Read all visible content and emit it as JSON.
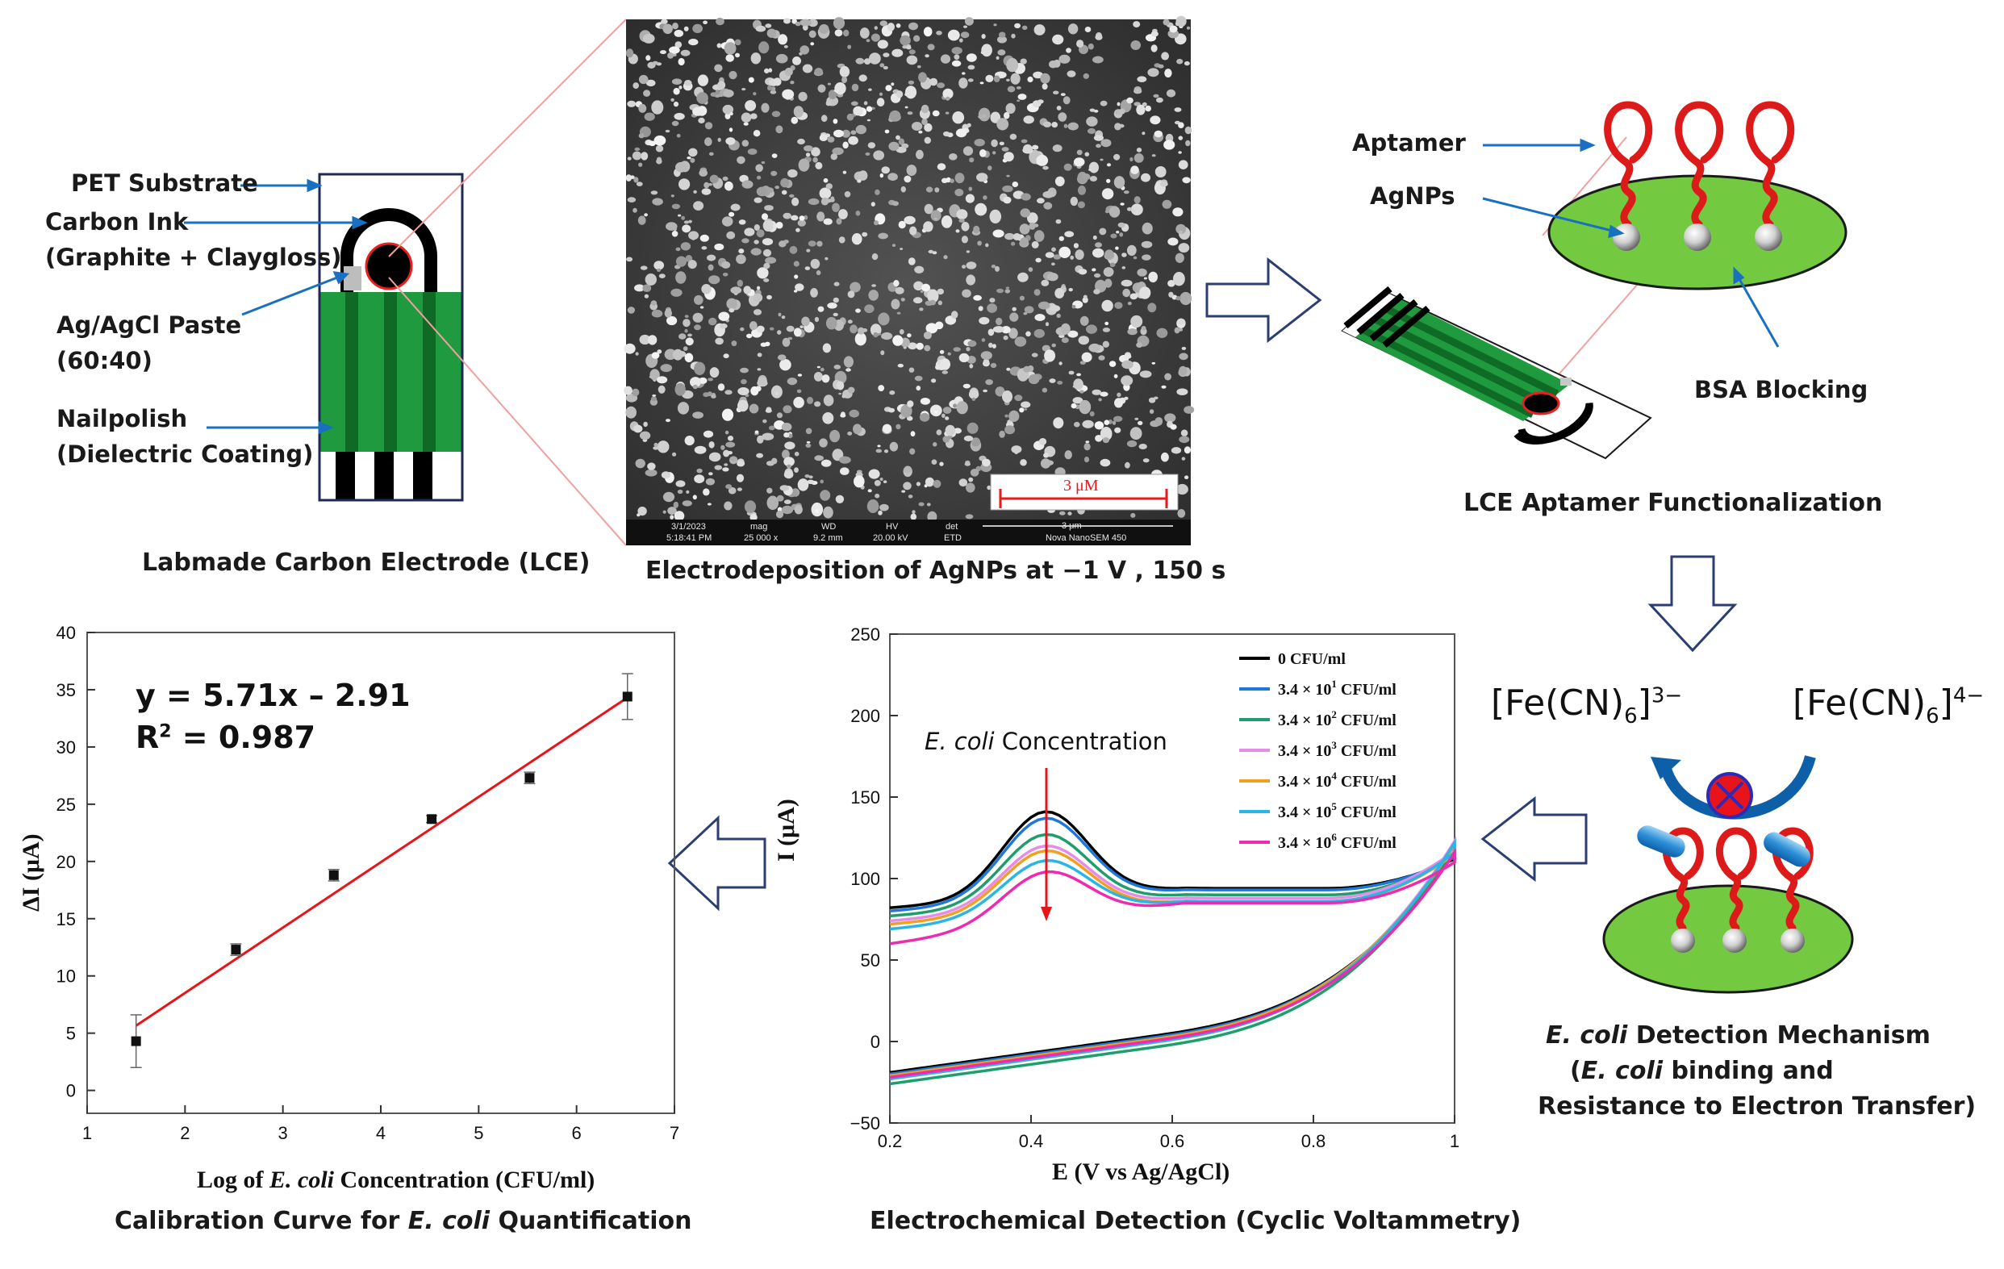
{
  "panel_lce": {
    "labels": {
      "pet": "PET Substrate",
      "carbon_1": "Carbon Ink",
      "carbon_2": "(Graphite + Claygloss)",
      "agagcl_1": "Ag/AgCl Paste",
      "agagcl_2": "(60:40)",
      "nail_1": "Nailpolish",
      "nail_2": "(Dielectric Coating)"
    },
    "caption": "Labmade Carbon Electrode (LCE)"
  },
  "panel_sem": {
    "scale_bar": "3 μM",
    "info_bar": {
      "date": "3/1/2023",
      "time": "5:18:41 PM",
      "mag_label": "mag",
      "mag_value": "25 000 x",
      "wd_label": "WD",
      "wd_value": "9.2 mm",
      "hv_label": "HV",
      "hv_value": "20.00 kV",
      "det_label": "det",
      "det_value": "ETD",
      "small_scale": "3 μm",
      "instrument": "Nova NanoSEM 450"
    },
    "caption": "Electrodeposition of AgNPs at −1 V , 150 s"
  },
  "panel_func": {
    "aptamer": "Aptamer",
    "agnps": "AgNPs",
    "bsa": "BSA Blocking",
    "caption": "LCE Aptamer Functionalization"
  },
  "panel_mech": {
    "ferri_base": "[Fe(CN)",
    "ferri_sub": "6",
    "ferri_close": "]",
    "ferri_sup": "3−",
    "ferro_base": "[Fe(CN)",
    "ferro_sub": "6",
    "ferro_close": "]",
    "ferro_sup": "4−",
    "caption_1_italic": "E. coli",
    "caption_1_rest": " Detection Mechanism",
    "caption_2_open": "(",
    "caption_2_italic": "E. coli",
    "caption_2_rest": " binding and",
    "caption_3": "Resistance to Electron Transfer)"
  },
  "cv_chart": {
    "y_axis_label": "I (μA)",
    "x_axis_label": "E (V vs Ag/AgCl)",
    "annotation_italic": "E. coli",
    "annotation_rest": " Concentration",
    "caption": "Electrochemical Detection (Cyclic Voltammetry)"
  },
  "cal_chart": {
    "equation": "y = 5.71x – 2.91",
    "r2_base": "R",
    "r2_sup": "2",
    "r2_value": " = 0.987",
    "y_axis_label": "ΔI (μA)",
    "x_label_pre": "Log of ",
    "x_label_italic": "E. coli",
    "x_label_post": " Concentration  (CFU/ml)",
    "caption_pre": "Calibration Curve for ",
    "caption_italic": "E. coli",
    "caption_post": " Quantification"
  },
  "chart_data": [
    {
      "type": "line",
      "xlim": [
        0.2,
        1.0
      ],
      "ylim": [
        -50,
        250
      ],
      "x_ticks": [
        "0.2",
        "0.4",
        "0.6",
        "0.8",
        "1"
      ],
      "y_ticks": [
        "−50",
        "0",
        "50",
        "100",
        "150",
        "200",
        "250"
      ],
      "xlabel": "E (V vs Ag/AgCl)",
      "ylabel": "I (μA)",
      "grid": false,
      "legend_position": "top-right",
      "series": [
        {
          "name": "0 CFU/ml",
          "legend_mantissa": "3.4 × 10",
          "legend_exp": "",
          "color": "#000000",
          "peak": 141,
          "start": 82,
          "valley": 94,
          "end": 112,
          "rev_start": -19
        },
        {
          "name": "3.4 × 10^1 CFU/ml",
          "legend_mantissa": "3.4 × 10",
          "legend_exp": "1",
          "color": "#1f77d8",
          "peak": 137,
          "start": 80,
          "valley": 93,
          "end": 113,
          "rev_start": -20
        },
        {
          "name": "3.4 × 10^2 CFU/ml",
          "legend_mantissa": "3.4 × 10",
          "legend_exp": "2",
          "color": "#1e9e6a",
          "peak": 127,
          "start": 77,
          "valley": 90,
          "end": 114,
          "rev_start": -26
        },
        {
          "name": "3.4 × 10^3 CFU/ml",
          "legend_mantissa": "3.4 × 10",
          "legend_exp": "3",
          "color": "#e58be8",
          "peak": 120,
          "start": 74,
          "valley": 88,
          "end": 117,
          "rev_start": -22
        },
        {
          "name": "3.4 × 10^4 CFU/ml",
          "legend_mantissa": "3.4 × 10",
          "legend_exp": "4",
          "color": "#f0a020",
          "peak": 117,
          "start": 72,
          "valley": 86,
          "end": 115,
          "rev_start": -21
        },
        {
          "name": "3.4 × 10^5 CFU/ml",
          "legend_mantissa": "3.4 × 10",
          "legend_exp": "5",
          "color": "#29b6e6",
          "peak": 111,
          "start": 69,
          "valley": 86,
          "end": 116,
          "rev_start": -23
        },
        {
          "name": "3.4 × 10^6 CFU/ml",
          "legend_mantissa": "3.4 × 10",
          "legend_exp": "6",
          "color": "#ee2ab0",
          "peak": 104,
          "start": 60,
          "valley": 85,
          "end": 110,
          "rev_start": -22
        }
      ]
    },
    {
      "type": "scatter",
      "x": [
        1.5,
        2.52,
        3.52,
        4.52,
        5.52,
        6.52
      ],
      "y": [
        4.3,
        12.3,
        18.8,
        23.7,
        27.3,
        34.4
      ],
      "error": [
        2.3,
        0.5,
        0.5,
        0.3,
        0.5,
        2.0
      ],
      "fit": {
        "slope": 5.71,
        "intercept": -2.91,
        "r2": 0.987,
        "color": "#e8141b"
      },
      "xlim": [
        1,
        7
      ],
      "ylim": [
        -2,
        40
      ],
      "x_ticks": [
        "1",
        "2",
        "3",
        "4",
        "5",
        "6",
        "7"
      ],
      "y_ticks": [
        "0",
        "5",
        "10",
        "15",
        "20",
        "25",
        "30",
        "35",
        "40"
      ],
      "xlabel": "Log of E. coli Concentration  (CFU/ml)",
      "ylabel": "ΔI (μA)",
      "grid": false
    }
  ],
  "colors": {
    "green": "#73c940",
    "dark_green": "#2f8a3a",
    "electrode_green": "#1f9a3f",
    "aptamer_red": "#dd1a1a",
    "arrow_blue": "#1a70c0",
    "connector_pink": "#f0a0a0"
  }
}
